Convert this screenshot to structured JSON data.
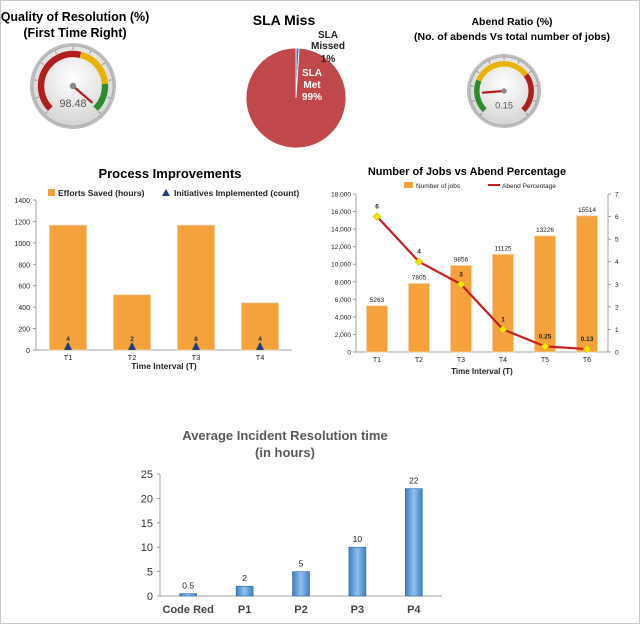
{
  "chart_data": [
    {
      "type": "gauge",
      "title": "Quality of Resolution  (%)",
      "subtitle": "(First Time Right)",
      "value": 98.48,
      "value_label": "98.48",
      "range": [
        0,
        100
      ],
      "bands": [
        {
          "from": 0,
          "to": 55,
          "color": "#b21e1e"
        },
        {
          "from": 55,
          "to": 82,
          "color": "#e8b400"
        },
        {
          "from": 82,
          "to": 100,
          "color": "#2e8b2e"
        }
      ]
    },
    {
      "type": "pie",
      "title": "SLA Miss",
      "slices": [
        {
          "name": "SLA Missed",
          "name_lines": [
            "SLA",
            "Missed"
          ],
          "value": 1,
          "label": "1%",
          "color": "#4f6fb8"
        },
        {
          "name": "SLA Met",
          "name_lines": [
            "SLA",
            "Met"
          ],
          "value": 99,
          "label": "99%",
          "color": "#c0474a"
        }
      ]
    },
    {
      "type": "gauge",
      "title": "Abend Ratio (%)",
      "subtitle": "(No. of abends Vs total number of jobs)",
      "value": 0.15,
      "value_label": "0.15",
      "range": [
        0,
        1
      ],
      "bands": [
        {
          "from": 0,
          "to": 0.25,
          "color": "#2e8b2e"
        },
        {
          "from": 0.25,
          "to": 0.7,
          "color": "#e8b400"
        },
        {
          "from": 0.7,
          "to": 1,
          "color": "#b21e1e"
        }
      ]
    },
    {
      "type": "bar",
      "title": "Process Improvements",
      "xlabel": "Time Interval (T)",
      "ylabel": "",
      "categories": [
        "T1",
        "T2",
        "T3",
        "T4"
      ],
      "ylim": [
        0,
        1400
      ],
      "yticks": [
        0,
        200,
        400,
        600,
        800,
        1000,
        1200,
        1400
      ],
      "legend_position": "top",
      "series": [
        {
          "name": "Efforts Saved (hours)",
          "kind": "bar",
          "values": [
            1165,
            515,
            1165,
            440
          ],
          "color": "#f5a23c"
        },
        {
          "name": "Initiatives Implemented (count)",
          "kind": "marker",
          "values": [
            4,
            2,
            8,
            4
          ],
          "labels": [
            "4",
            "2",
            "8",
            "4"
          ],
          "color": "#1f3f7a"
        }
      ]
    },
    {
      "type": "bar",
      "title": "Number of Jobs vs Abend Percentage",
      "xlabel": "Time Interval (T)",
      "ylabel": "",
      "categories": [
        "T1",
        "T2",
        "T3",
        "T4",
        "T5",
        "T6"
      ],
      "ylim": [
        0,
        18000
      ],
      "yticks": [
        0,
        2000,
        4000,
        6000,
        8000,
        10000,
        12000,
        14000,
        16000,
        18000
      ],
      "yticks_labels": [
        "0",
        "2,000",
        "4,000",
        "6,000",
        "8,000",
        "10,000",
        "12,000",
        "14,000",
        "16,000",
        "18,000"
      ],
      "y2lim": [
        0,
        7
      ],
      "y2ticks": [
        0,
        1,
        2,
        3,
        4,
        5,
        6,
        7
      ],
      "legend_position": "top",
      "series": [
        {
          "name": "Number of jobs",
          "kind": "bar",
          "axis": "left",
          "values": [
            5263,
            7805,
            9856,
            11125,
            13226,
            15514
          ],
          "labels": [
            "5263",
            "7805",
            "9856",
            "11125",
            "13226",
            "15514"
          ],
          "color": "#f5a23c"
        },
        {
          "name": "Abend Percentage",
          "kind": "line",
          "axis": "right",
          "values": [
            6,
            4,
            3,
            1,
            0.25,
            0.13
          ],
          "labels": [
            "6",
            "4",
            "3",
            "1",
            "0.25",
            "0.13"
          ],
          "color": "#c81e1e",
          "marker_color": "#f2e600"
        }
      ]
    },
    {
      "type": "bar",
      "title": "Average Incident Resolution time",
      "subtitle": "(in hours)",
      "xlabel": "",
      "ylabel": "",
      "categories": [
        "Code Red",
        "P1",
        "P2",
        "P3",
        "P4"
      ],
      "values": [
        0.5,
        2,
        5,
        10,
        22
      ],
      "labels": [
        "0.5",
        "2",
        "5",
        "10",
        "22"
      ],
      "ylim": [
        0,
        25
      ],
      "yticks": [
        0,
        5,
        10,
        15,
        20,
        25
      ],
      "color": "#5b9bd5"
    }
  ]
}
